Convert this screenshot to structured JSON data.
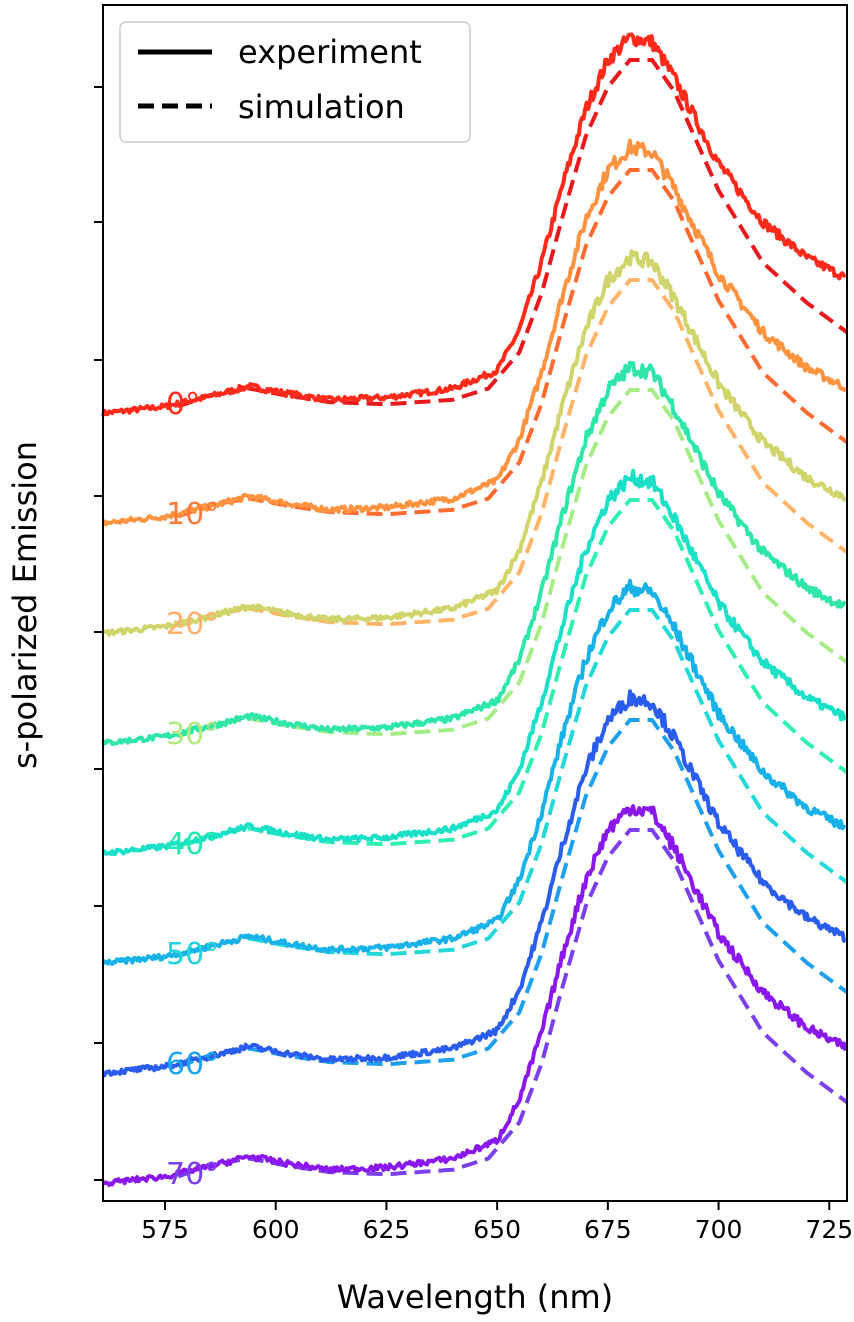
{
  "chart_data": {
    "type": "line",
    "title": "",
    "xlabel": "Wavelength (nm)",
    "ylabel": "s-polarized Emission",
    "xlim": [
      561,
      729
    ],
    "xticks": [
      575,
      600,
      625,
      650,
      675,
      700,
      725
    ],
    "xtick_labels": [
      "575",
      "600",
      "625",
      "650",
      "675",
      "700",
      "725"
    ],
    "ytick_count": 9,
    "yticks_labeled": false,
    "grid": false,
    "legend": {
      "placement": "top-left",
      "entries": [
        {
          "label": "experiment",
          "style": "solid"
        },
        {
          "label": "simulation",
          "style": "dashed"
        }
      ]
    },
    "offsets_stacked": true,
    "series": [
      {
        "angle_label": "0°",
        "angle_label_color": "#ff2a1a",
        "experiment_color": "#ff2a1a",
        "simulation_color": "#e8181c",
        "experiment": {
          "x": [
            561,
            575,
            585,
            594,
            602,
            612,
            625,
            640,
            650,
            655,
            660,
            665,
            670,
            675,
            680,
            685,
            690,
            700,
            710,
            720,
            729
          ],
          "y": [
            0.55,
            0.7,
            0.92,
            1.15,
            1.0,
            0.85,
            0.9,
            1.1,
            1.5,
            2.4,
            3.9,
            5.7,
            7.3,
            8.4,
            8.9,
            8.8,
            8.0,
            6.1,
            4.8,
            4.0,
            3.55
          ]
        },
        "simulation": {
          "x": [
            578,
            585,
            594,
            602,
            612,
            625,
            640,
            648,
            655,
            660,
            665,
            670,
            675,
            680,
            685,
            690,
            700,
            710,
            720,
            729
          ],
          "y": [
            0.7,
            0.95,
            1.1,
            0.95,
            0.8,
            0.75,
            0.85,
            1.1,
            1.9,
            3.2,
            5.0,
            6.7,
            7.8,
            8.4,
            8.4,
            7.7,
            5.5,
            3.9,
            3.0,
            2.35
          ]
        }
      },
      {
        "angle_label": "10°",
        "angle_label_color": "#ff7a3a",
        "experiment_color": "#ff9340",
        "simulation_color": "#ff6a30",
        "experiment": {
          "x": [
            561,
            575,
            585,
            594,
            602,
            612,
            625,
            640,
            650,
            655,
            660,
            665,
            670,
            675,
            680,
            685,
            690,
            700,
            710,
            720,
            729
          ],
          "y": [
            0.55,
            0.7,
            0.92,
            1.15,
            1.0,
            0.85,
            0.9,
            1.1,
            1.5,
            2.4,
            3.9,
            5.7,
            7.3,
            8.4,
            8.9,
            8.8,
            8.0,
            6.1,
            4.8,
            4.0,
            3.55
          ]
        },
        "simulation": {
          "x": [
            578,
            585,
            594,
            602,
            612,
            625,
            640,
            648,
            655,
            660,
            665,
            670,
            675,
            680,
            685,
            690,
            700,
            710,
            720,
            729
          ],
          "y": [
            0.7,
            0.95,
            1.1,
            0.95,
            0.8,
            0.75,
            0.85,
            1.1,
            1.9,
            3.2,
            5.0,
            6.7,
            7.8,
            8.4,
            8.4,
            7.7,
            5.5,
            3.9,
            3.0,
            2.35
          ]
        }
      },
      {
        "angle_label": "20°",
        "angle_label_color": "#ffb070",
        "experiment_color": "#cfd56a",
        "simulation_color": "#ffb468",
        "experiment": {
          "x": [
            561,
            575,
            585,
            594,
            602,
            612,
            625,
            640,
            650,
            655,
            660,
            665,
            670,
            675,
            680,
            685,
            690,
            700,
            710,
            720,
            729
          ],
          "y": [
            0.55,
            0.7,
            0.92,
            1.15,
            1.0,
            0.85,
            0.9,
            1.1,
            1.5,
            2.4,
            3.9,
            5.7,
            7.3,
            8.4,
            8.9,
            8.8,
            8.0,
            6.1,
            4.8,
            4.0,
            3.55
          ]
        },
        "simulation": {
          "x": [
            578,
            585,
            594,
            602,
            612,
            625,
            640,
            648,
            655,
            660,
            665,
            670,
            675,
            680,
            685,
            690,
            700,
            710,
            720,
            729
          ],
          "y": [
            0.7,
            0.95,
            1.1,
            0.95,
            0.8,
            0.75,
            0.85,
            1.1,
            1.9,
            3.2,
            5.0,
            6.7,
            7.8,
            8.4,
            8.4,
            7.7,
            5.5,
            3.9,
            3.0,
            2.35
          ]
        }
      },
      {
        "angle_label": "30°",
        "angle_label_color": "#b4e882",
        "experiment_color": "#2ee6a6",
        "simulation_color": "#a6ec86",
        "experiment": {
          "x": [
            561,
            575,
            585,
            594,
            602,
            612,
            625,
            640,
            650,
            655,
            660,
            665,
            670,
            675,
            680,
            685,
            690,
            700,
            710,
            720,
            729
          ],
          "y": [
            0.55,
            0.7,
            0.92,
            1.15,
            1.0,
            0.85,
            0.9,
            1.1,
            1.5,
            2.4,
            3.9,
            5.7,
            7.3,
            8.4,
            8.9,
            8.8,
            8.0,
            6.1,
            4.8,
            4.0,
            3.55
          ]
        },
        "simulation": {
          "x": [
            578,
            585,
            594,
            602,
            612,
            625,
            640,
            648,
            655,
            660,
            665,
            670,
            675,
            680,
            685,
            690,
            700,
            710,
            720,
            729
          ],
          "y": [
            0.7,
            0.95,
            1.1,
            0.95,
            0.8,
            0.75,
            0.85,
            1.1,
            1.9,
            3.2,
            5.0,
            6.7,
            7.8,
            8.4,
            8.4,
            7.7,
            5.5,
            3.9,
            3.0,
            2.35
          ]
        }
      },
      {
        "angle_label": "40°",
        "angle_label_color": "#22e8b4",
        "experiment_color": "#1ae0c8",
        "simulation_color": "#2ef0b0",
        "experiment": {
          "x": [
            561,
            575,
            585,
            594,
            602,
            612,
            625,
            640,
            650,
            655,
            660,
            665,
            670,
            675,
            680,
            685,
            690,
            700,
            710,
            720,
            729
          ],
          "y": [
            0.55,
            0.7,
            0.92,
            1.15,
            1.0,
            0.85,
            0.9,
            1.1,
            1.5,
            2.4,
            3.9,
            5.7,
            7.3,
            8.4,
            8.9,
            8.8,
            8.0,
            6.1,
            4.8,
            4.0,
            3.55
          ]
        },
        "simulation": {
          "x": [
            578,
            585,
            594,
            602,
            612,
            625,
            640,
            648,
            655,
            660,
            665,
            670,
            675,
            680,
            685,
            690,
            700,
            710,
            720,
            729
          ],
          "y": [
            0.7,
            0.95,
            1.1,
            0.95,
            0.8,
            0.75,
            0.85,
            1.1,
            1.9,
            3.2,
            5.0,
            6.7,
            7.8,
            8.4,
            8.4,
            7.7,
            5.5,
            3.9,
            3.0,
            2.35
          ]
        }
      },
      {
        "angle_label": "50°",
        "angle_label_color": "#22d4dc",
        "experiment_color": "#18b2e8",
        "simulation_color": "#22d8d8",
        "experiment": {
          "x": [
            561,
            575,
            585,
            594,
            602,
            612,
            625,
            640,
            650,
            655,
            660,
            665,
            670,
            675,
            680,
            685,
            690,
            700,
            710,
            720,
            729
          ],
          "y": [
            0.55,
            0.7,
            0.92,
            1.15,
            1.0,
            0.85,
            0.9,
            1.1,
            1.5,
            2.4,
            3.9,
            5.7,
            7.3,
            8.4,
            8.9,
            8.8,
            8.0,
            6.1,
            4.8,
            4.0,
            3.55
          ]
        },
        "simulation": {
          "x": [
            578,
            585,
            594,
            602,
            612,
            625,
            640,
            648,
            655,
            660,
            665,
            670,
            675,
            680,
            685,
            690,
            700,
            710,
            720,
            729
          ],
          "y": [
            0.7,
            0.95,
            1.1,
            0.95,
            0.8,
            0.75,
            0.85,
            1.1,
            1.9,
            3.2,
            5.0,
            6.7,
            7.8,
            8.4,
            8.4,
            7.7,
            5.5,
            3.9,
            3.0,
            2.35
          ]
        }
      },
      {
        "angle_label": "60°",
        "angle_label_color": "#1aa6ee",
        "experiment_color": "#2a5cee",
        "simulation_color": "#1ea0ee",
        "experiment": {
          "x": [
            561,
            575,
            585,
            594,
            602,
            612,
            625,
            640,
            650,
            655,
            660,
            665,
            670,
            675,
            680,
            685,
            690,
            700,
            710,
            720,
            729
          ],
          "y": [
            0.55,
            0.7,
            0.92,
            1.15,
            1.0,
            0.85,
            0.9,
            1.1,
            1.5,
            2.4,
            3.9,
            5.7,
            7.3,
            8.4,
            8.9,
            8.8,
            8.0,
            6.1,
            4.8,
            4.0,
            3.55
          ]
        },
        "simulation": {
          "x": [
            578,
            585,
            594,
            602,
            612,
            625,
            640,
            648,
            655,
            660,
            665,
            670,
            675,
            680,
            685,
            690,
            700,
            710,
            720,
            729
          ],
          "y": [
            0.7,
            0.95,
            1.1,
            0.95,
            0.8,
            0.75,
            0.85,
            1.1,
            1.9,
            3.2,
            5.0,
            6.7,
            7.8,
            8.4,
            8.4,
            7.7,
            5.5,
            3.9,
            3.0,
            2.35
          ]
        }
      },
      {
        "angle_label": "70°",
        "angle_label_color": "#7a40ee",
        "experiment_color": "#8a18ee",
        "simulation_color": "#7a40ee",
        "experiment": {
          "x": [
            561,
            575,
            585,
            594,
            602,
            612,
            625,
            640,
            650,
            655,
            660,
            665,
            670,
            675,
            680,
            685,
            690,
            700,
            710,
            720,
            729
          ],
          "y": [
            0.55,
            0.7,
            0.92,
            1.15,
            1.0,
            0.85,
            0.9,
            1.1,
            1.5,
            2.4,
            3.9,
            5.7,
            7.3,
            8.4,
            8.9,
            8.8,
            8.0,
            6.1,
            4.8,
            4.0,
            3.55
          ]
        },
        "simulation": {
          "x": [
            578,
            585,
            594,
            602,
            612,
            625,
            640,
            648,
            655,
            660,
            665,
            670,
            675,
            680,
            685,
            690,
            700,
            710,
            720,
            729
          ],
          "y": [
            0.7,
            0.95,
            1.1,
            0.95,
            0.8,
            0.75,
            0.85,
            1.1,
            1.9,
            3.2,
            5.0,
            6.7,
            7.8,
            8.4,
            8.4,
            7.7,
            5.5,
            3.9,
            3.0,
            2.35
          ]
        }
      }
    ]
  }
}
